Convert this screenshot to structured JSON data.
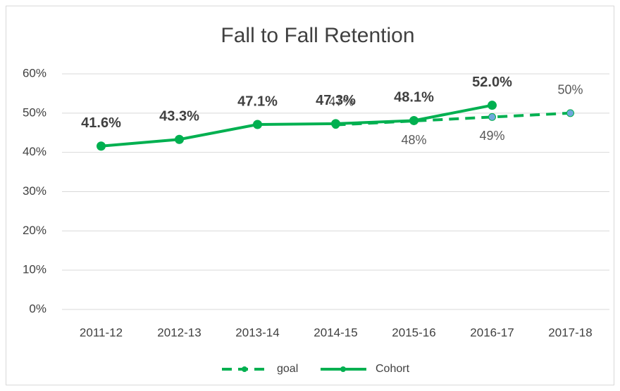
{
  "chart_data": {
    "type": "line",
    "title": "Fall to Fall Retention",
    "categories": [
      "2011-12",
      "2012-13",
      "2013-14",
      "2014-15",
      "2015-16",
      "2016-17",
      "2017-18"
    ],
    "series": [
      {
        "name": "goal",
        "color": "#00b050",
        "marker_color": "#6fa8dc",
        "dashed": true,
        "values": [
          null,
          null,
          null,
          47,
          48,
          49,
          50
        ],
        "value_labels": [
          null,
          null,
          null,
          "47%",
          "48%",
          "49%",
          "50%"
        ]
      },
      {
        "name": "Cohort",
        "color": "#00b050",
        "marker_color": "#00b050",
        "dashed": false,
        "values": [
          41.6,
          43.3,
          47.1,
          47.3,
          48.1,
          52.0,
          null
        ],
        "value_labels": [
          "41.6%",
          "43.3%",
          "47.1%",
          "47.3%",
          "48.1%",
          "52.0%",
          null
        ]
      }
    ],
    "ylim": [
      0,
      60
    ],
    "yticks": [
      {
        "value": 0,
        "label": "0%"
      },
      {
        "value": 10,
        "label": "10%"
      },
      {
        "value": 20,
        "label": "20%"
      },
      {
        "value": 30,
        "label": "30%"
      },
      {
        "value": 40,
        "label": "40%"
      },
      {
        "value": 50,
        "label": "50%"
      },
      {
        "value": 60,
        "label": "60%"
      }
    ],
    "grid": true,
    "legend": "bottom"
  }
}
